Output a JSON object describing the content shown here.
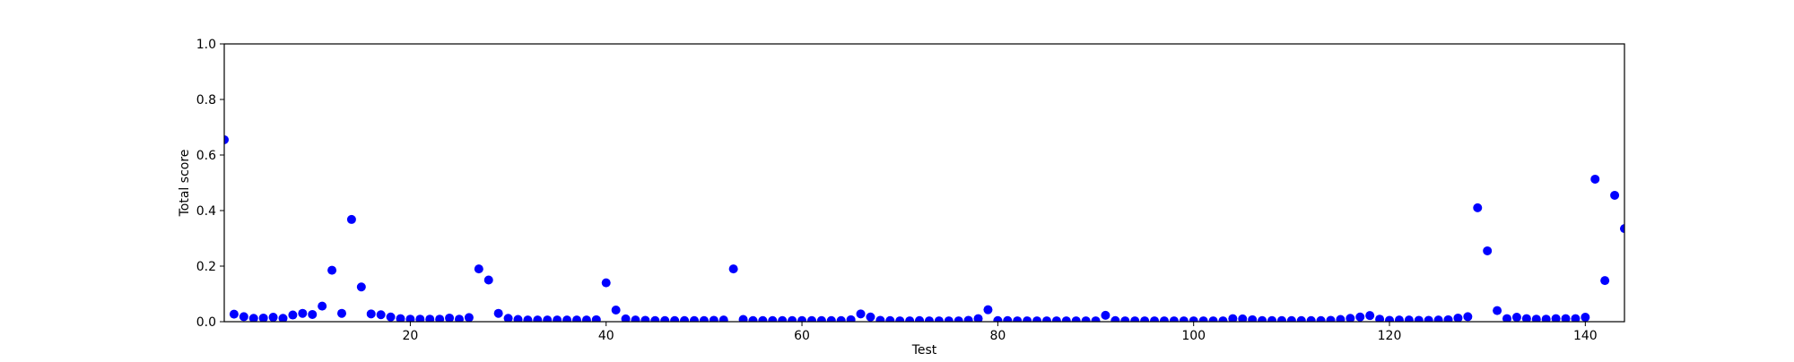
{
  "chart_data": {
    "type": "scatter",
    "title": "",
    "xlabel": "Test",
    "ylabel": "Total score",
    "xlim": [
      1,
      144
    ],
    "ylim": [
      0,
      1.0
    ],
    "x_ticks": [
      20,
      40,
      60,
      80,
      100,
      120,
      140
    ],
    "y_ticks": [
      0.0,
      0.2,
      0.4,
      0.6,
      0.8,
      1.0
    ],
    "y_tick_labels": [
      "0.0",
      "0.2",
      "0.4",
      "0.6",
      "0.8",
      "1.0"
    ],
    "grid": false,
    "marker_color": "#0000ff",
    "series": [
      {
        "x": [
          1,
          2,
          3,
          4,
          5,
          6,
          7,
          8,
          9,
          10,
          11,
          12,
          13,
          14,
          15,
          16,
          17,
          18,
          19,
          20,
          21,
          22,
          23,
          24,
          25,
          26,
          27,
          28,
          29,
          30,
          31,
          32,
          33,
          34,
          35,
          36,
          37,
          38,
          39,
          40,
          41,
          42,
          43,
          44,
          45,
          46,
          47,
          48,
          49,
          50,
          51,
          52,
          53,
          54,
          55,
          56,
          57,
          58,
          59,
          60,
          61,
          62,
          63,
          64,
          65,
          66,
          67,
          68,
          69,
          70,
          71,
          72,
          73,
          74,
          75,
          76,
          77,
          78,
          79,
          80,
          81,
          82,
          83,
          84,
          85,
          86,
          87,
          88,
          89,
          90,
          91,
          92,
          93,
          94,
          95,
          96,
          97,
          98,
          99,
          100,
          101,
          102,
          103,
          104,
          105,
          106,
          107,
          108,
          109,
          110,
          111,
          112,
          113,
          114,
          115,
          116,
          117,
          118,
          119,
          120,
          121,
          122,
          123,
          124,
          125,
          126,
          127,
          128,
          129,
          130,
          131,
          132,
          133,
          134,
          135,
          136,
          137,
          138,
          139,
          140,
          141,
          142,
          143,
          144
        ],
        "values": [
          0.655,
          0.027,
          0.018,
          0.012,
          0.013,
          0.016,
          0.012,
          0.024,
          0.03,
          0.026,
          0.056,
          0.185,
          0.03,
          0.368,
          0.125,
          0.028,
          0.025,
          0.017,
          0.011,
          0.009,
          0.009,
          0.009,
          0.009,
          0.013,
          0.009,
          0.015,
          0.19,
          0.15,
          0.03,
          0.012,
          0.008,
          0.006,
          0.006,
          0.006,
          0.006,
          0.006,
          0.006,
          0.006,
          0.007,
          0.14,
          0.042,
          0.01,
          0.006,
          0.005,
          0.004,
          0.004,
          0.004,
          0.004,
          0.004,
          0.004,
          0.005,
          0.006,
          0.19,
          0.008,
          0.004,
          0.004,
          0.004,
          0.004,
          0.004,
          0.004,
          0.004,
          0.004,
          0.004,
          0.004,
          0.007,
          0.028,
          0.017,
          0.005,
          0.004,
          0.003,
          0.003,
          0.004,
          0.003,
          0.003,
          0.003,
          0.003,
          0.005,
          0.011,
          0.043,
          0.004,
          0.004,
          0.003,
          0.003,
          0.003,
          0.003,
          0.003,
          0.003,
          0.003,
          0.003,
          0.003,
          0.023,
          0.004,
          0.003,
          0.003,
          0.003,
          0.003,
          0.003,
          0.003,
          0.003,
          0.003,
          0.003,
          0.003,
          0.003,
          0.011,
          0.01,
          0.007,
          0.004,
          0.004,
          0.004,
          0.004,
          0.004,
          0.004,
          0.004,
          0.005,
          0.008,
          0.012,
          0.017,
          0.022,
          0.009,
          0.005,
          0.006,
          0.006,
          0.005,
          0.005,
          0.006,
          0.007,
          0.013,
          0.018,
          0.41,
          0.255,
          0.04,
          0.011,
          0.016,
          0.011,
          0.009,
          0.009,
          0.011,
          0.011,
          0.011,
          0.016,
          0.513,
          0.148,
          0.455,
          0.335
        ]
      }
    ]
  }
}
